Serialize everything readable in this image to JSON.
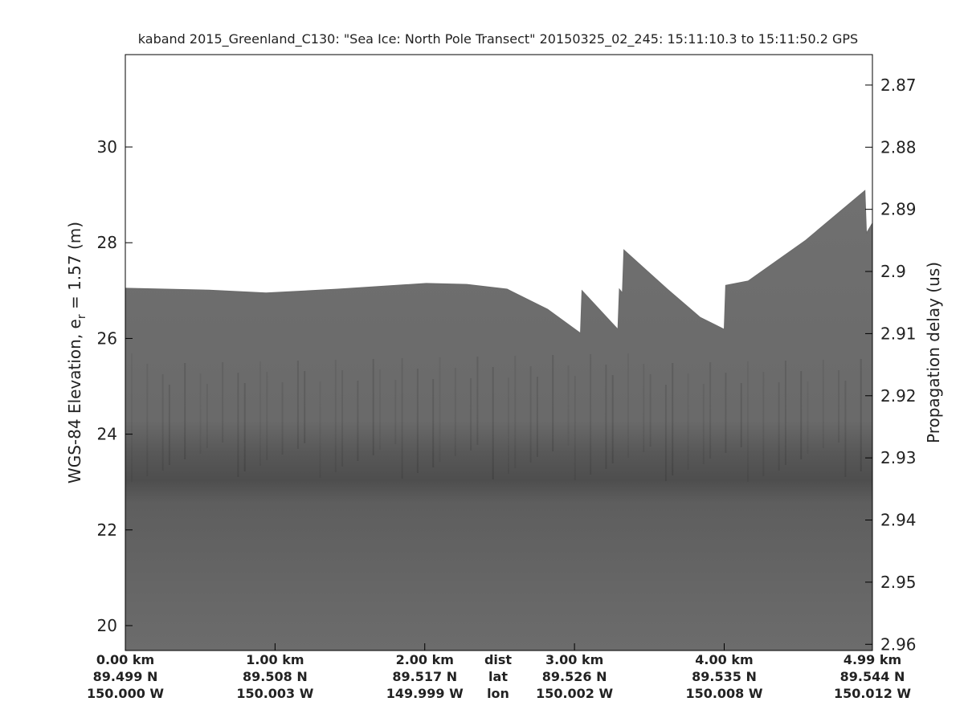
{
  "chart_data": {
    "type": "echogram",
    "title": "kaband 2015_Greenland_C130: \"Sea Ice: North Pole Transect\"  20150325_02_245: 15:11:10.3 to 15:11:50.2 GPS",
    "ylabel_prefix": "WGS-84 Elevation, e",
    "ylabel_subscript": "r",
    "ylabel_suffix": " = 1.57 (m)",
    "y2label": "Propagation delay (us)",
    "xlim": [
      0,
      4.99
    ],
    "xticks": [
      {
        "value": 0,
        "label": "0.00 km"
      },
      {
        "value": 1,
        "label": "1.00 km"
      },
      {
        "value": 2,
        "label": "2.00 km"
      },
      {
        "value": 3,
        "label": "3.00 km"
      },
      {
        "value": 4,
        "label": "4.00 km"
      },
      {
        "value": 4.99,
        "label": "4.99 km"
      }
    ],
    "lat_labels": [
      "89.499 N",
      "89.508 N",
      "89.517 N",
      "89.526 N",
      "89.535 N",
      "89.544 N"
    ],
    "lon_labels": [
      "150.000 W",
      "150.003 W",
      "149.999 W",
      "150.002 W",
      "150.008 W",
      "150.012 W"
    ],
    "row_labels": [
      "dist",
      "lat",
      "lon"
    ],
    "ylim": [
      19.48,
      31.93
    ],
    "yticks": [
      20,
      22,
      24,
      26,
      28,
      30
    ],
    "y2lim": [
      2.961,
      2.8651
    ],
    "y2ticks": [
      2.87,
      2.88,
      2.89,
      2.9,
      2.91,
      2.92,
      2.93,
      2.94,
      2.95,
      2.96
    ],
    "series": [
      {
        "name": "surface",
        "color": "#6b6b6b",
        "x": [
          0,
          0.56,
          0.94,
          1.42,
          2.01,
          2.28,
          2.55,
          2.82,
          3.04,
          3.05,
          3.29,
          3.3,
          3.32,
          3.33,
          3.62,
          3.84,
          4.0,
          4.01,
          4.16,
          4.54,
          4.94,
          4.95,
          4.99
        ],
        "values": [
          27.05,
          27.01,
          26.95,
          27.03,
          27.15,
          27.13,
          27.03,
          26.61,
          26.11,
          27.0,
          26.19,
          27.03,
          26.95,
          27.85,
          27.03,
          26.44,
          26.19,
          27.11,
          27.2,
          28.04,
          29.09,
          28.2,
          28.41
        ]
      }
    ]
  }
}
